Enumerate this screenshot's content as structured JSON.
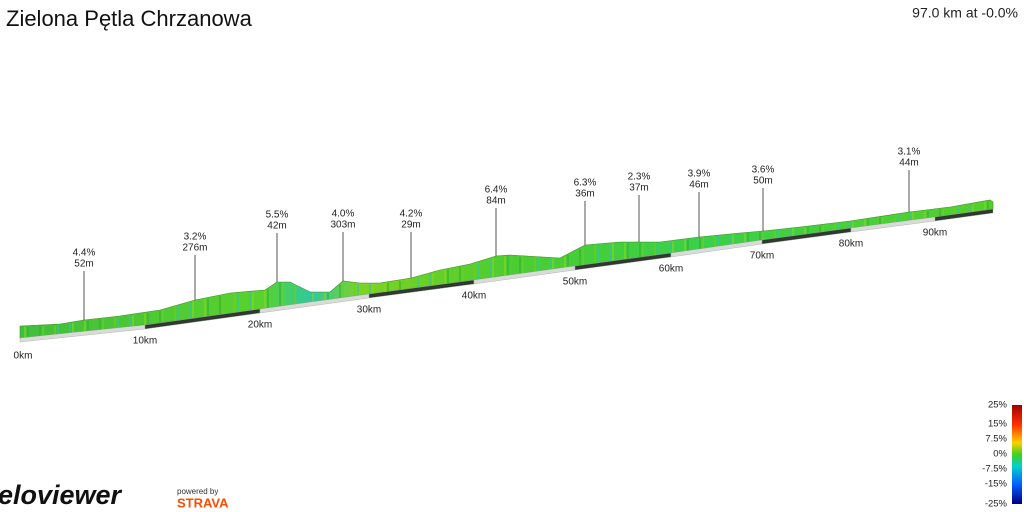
{
  "header": {
    "title": "Zielona Pętla Chrzanowa",
    "summary": "97.0 km at -0.0%"
  },
  "distance_labels": [
    "0km",
    "10km",
    "20km",
    "30km",
    "40km",
    "50km",
    "60km",
    "70km",
    "80km",
    "90km"
  ],
  "climbs": [
    {
      "gradient": "4.4%",
      "height": "52m"
    },
    {
      "gradient": "3.2%",
      "height": "276m"
    },
    {
      "gradient": "5.5%",
      "height": "42m"
    },
    {
      "gradient": "4.0%",
      "height": "303m"
    },
    {
      "gradient": "4.2%",
      "height": "29m"
    },
    {
      "gradient": "6.4%",
      "height": "84m"
    },
    {
      "gradient": "6.3%",
      "height": "36m"
    },
    {
      "gradient": "2.3%",
      "height": "37m"
    },
    {
      "gradient": "3.9%",
      "height": "46m"
    },
    {
      "gradient": "3.6%",
      "height": "50m"
    },
    {
      "gradient": "3.1%",
      "height": "44m"
    }
  ],
  "legend": [
    "25%",
    "15%",
    "7.5%",
    "0%",
    "-7.5%",
    "-15%",
    "-25%"
  ],
  "branding": {
    "logo": "veloviewer",
    "powered_by": "powered by",
    "partner": "STRAVA"
  }
}
